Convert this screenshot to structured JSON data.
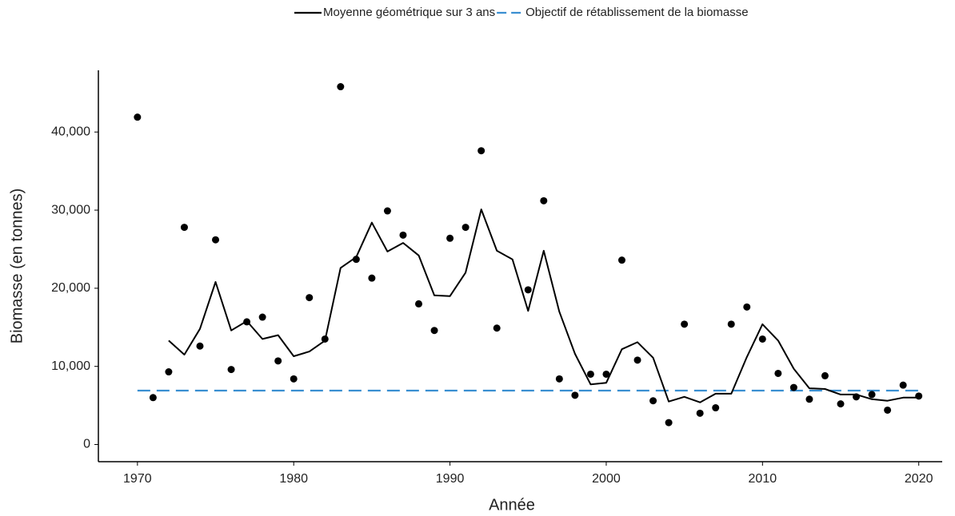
{
  "chart_data": {
    "type": "line",
    "x_label": "Année",
    "y_label": "Biomasse (en tonnes)",
    "x": [
      1970,
      1971,
      1972,
      1973,
      1974,
      1975,
      1976,
      1977,
      1978,
      1979,
      1980,
      1981,
      1982,
      1983,
      1984,
      1985,
      1986,
      1987,
      1988,
      1989,
      1990,
      1991,
      1992,
      1993,
      1994,
      1995,
      1996,
      1997,
      1998,
      1999,
      2000,
      2001,
      2002,
      2003,
      2004,
      2005,
      2006,
      2007,
      2008,
      2009,
      2010,
      2011,
      2012,
      2013,
      2014,
      2015,
      2016,
      2017,
      2018,
      2019,
      2020
    ],
    "series": [
      {
        "mode": "markers",
        "color": "#000000",
        "values": [
          41900,
          6000,
          9300,
          27800,
          12600,
          26200,
          9600,
          15700,
          16300,
          10700,
          8400,
          18800,
          13500,
          45800,
          23700,
          21300,
          29900,
          26800,
          18000,
          14600,
          26400,
          27800,
          37600,
          14900,
          null,
          19800,
          31200,
          8400,
          6300,
          9000,
          9000,
          23600,
          10800,
          5600,
          2800,
          15400,
          4000,
          4700,
          15400,
          17600,
          13500,
          9100,
          7300,
          5800,
          8800,
          5200,
          6100,
          6400,
          4400,
          7600,
          6200
        ]
      },
      {
        "mode": "lines",
        "name": "Moyenne géométrique sur 3 ans",
        "color": "#000000",
        "values": [
          null,
          null,
          13300,
          11500,
          14800,
          20800,
          14600,
          15800,
          13500,
          14000,
          11300,
          11900,
          13300,
          22600,
          24000,
          28400,
          24700,
          25800,
          24200,
          19100,
          19000,
          22000,
          30100,
          24800,
          23700,
          17100,
          24800,
          17000,
          11600,
          7700,
          7900,
          12200,
          13100,
          11100,
          5500,
          6100,
          5400,
          6500,
          6500,
          11200,
          15400,
          13300,
          9700,
          7200,
          7100,
          6400,
          6400,
          5800,
          5600,
          6000,
          6000
        ]
      }
    ],
    "reference_lines": [
      {
        "name": "Objectif de rétablissement de la biomasse",
        "color": "#3a8fd1",
        "dashed": true,
        "value": 6900,
        "x_range": [
          1970,
          2020
        ]
      }
    ],
    "xlim": [
      1967.5,
      2021.5
    ],
    "xticks": [
      1970,
      1980,
      1990,
      2000,
      2010,
      2020
    ],
    "ylim": [
      -2200,
      47900
    ],
    "yticks": [
      0,
      {
        "value": 10000,
        "label": "10,000"
      },
      {
        "value": 20000,
        "label": "20,000"
      },
      {
        "value": 30000,
        "label": "30,000"
      },
      {
        "value": 40000,
        "label": "40,000"
      }
    ],
    "grid": false,
    "legend": "top"
  }
}
